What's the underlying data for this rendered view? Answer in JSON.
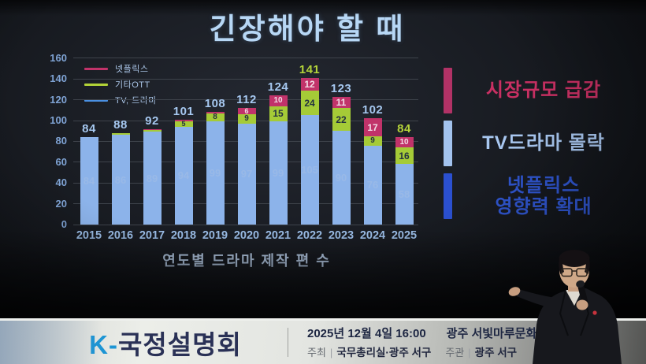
{
  "slide": {
    "title": "긴장해야 할 때"
  },
  "chart_data": {
    "type": "bar",
    "stacked": true,
    "title": "긴장해야 할 때",
    "xlabel": "연도별 드라마 제작 편 수",
    "ylabel": "",
    "ylim": [
      0,
      160
    ],
    "ytick_step": 20,
    "grid": true,
    "legend_position": "top-left",
    "categories": [
      "2015",
      "2016",
      "2017",
      "2018",
      "2019",
      "2020",
      "2021",
      "2022",
      "2023",
      "2024",
      "2025"
    ],
    "series": [
      {
        "name": "TV, 드라마",
        "color": "#8cb3ea",
        "values": [
          84,
          86,
          89,
          94,
          99,
          97,
          99,
          105,
          90,
          76,
          58
        ]
      },
      {
        "name": "기타OTT",
        "color": "#a5cb37",
        "values": [
          0,
          2,
          2,
          5,
          8,
          9,
          15,
          24,
          22,
          9,
          16
        ]
      },
      {
        "name": "넷플릭스",
        "color": "#c1336a",
        "values": [
          0,
          0,
          1,
          2,
          1,
          6,
          10,
          12,
          11,
          17,
          10
        ]
      }
    ],
    "totals": [
      84,
      88,
      92,
      101,
      108,
      112,
      124,
      141,
      123,
      102,
      84
    ],
    "total_highlight_indices": [
      7,
      10
    ],
    "colors": {
      "total_label": "#a6c8f0",
      "total_label_highlight": "#b5d43a",
      "axis_label": "#9cbfe9",
      "grid": "#3e434b"
    }
  },
  "legend": {
    "items": [
      {
        "label": "넷플릭스",
        "color": "#c1336a"
      },
      {
        "label": "기타OTT",
        "color": "#b2d237"
      },
      {
        "label": "TV, 드라마",
        "color": "#4a90e2"
      }
    ]
  },
  "callouts": [
    {
      "lines": [
        "시장규모 급감"
      ],
      "text_color": "#c93063",
      "bar_color": "#b23266"
    },
    {
      "lines": [
        "TV드라마 몰락"
      ],
      "text_color": "#a8c7f0",
      "bar_color": "#a3c3ee"
    },
    {
      "lines": [
        "넷플릭스",
        "영향력 확대"
      ],
      "text_color": "#2f55ce",
      "bar_color": "#2b50d0"
    }
  ],
  "banner": {
    "title_accent": "K-",
    "title_rest": "국정설명회",
    "datetime": "2025년 12월 4일 16:00",
    "venue": "광주 서빛마루문화예술회관",
    "host_label": "주최",
    "host_value": "국무총리실·광주 서구",
    "organizer_label": "주관",
    "organizer_value": "광주 서구"
  }
}
